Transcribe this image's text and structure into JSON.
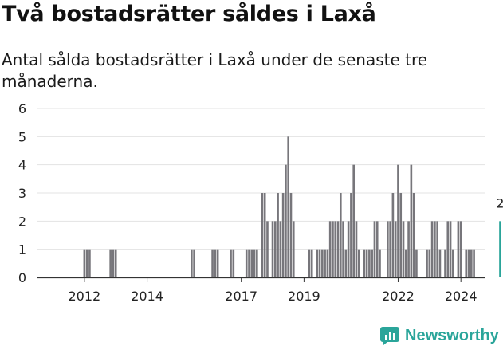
{
  "title": "Två bostadsrätter såldes i Laxå",
  "subtitle": "Antal sålda bostadsrätter i Laxå under de senaste tre månaderna.",
  "brand": {
    "name": "Newsworthy",
    "icon": "newsworthy-logo-icon",
    "color": "#2aa59a"
  },
  "colors": {
    "bar": "#77767b",
    "highlight": "#2aa59a",
    "grid": "#e3e3e3",
    "axis": "#333333"
  },
  "chart_data": {
    "type": "bar",
    "x_unit": "month",
    "x_start": "2011-01",
    "x_end": "2025-07",
    "ylim": [
      0,
      6
    ],
    "yticks": [
      0,
      1,
      2,
      3,
      4,
      5,
      6
    ],
    "grid": true,
    "xtick_labels": [
      {
        "label": "2012",
        "date": "2012-01"
      },
      {
        "label": "2014",
        "date": "2014-01"
      },
      {
        "label": "2017",
        "date": "2017-01"
      },
      {
        "label": "2019",
        "date": "2019-01"
      },
      {
        "label": "2022",
        "date": "2022-01"
      },
      {
        "label": "2024",
        "date": "2024-01"
      }
    ],
    "highlight_label": "2",
    "series": [
      {
        "values": [
          {
            "date": "2012-01",
            "value": 1
          },
          {
            "date": "2012-02",
            "value": 1
          },
          {
            "date": "2012-03",
            "value": 1
          },
          {
            "date": "2012-11",
            "value": 1
          },
          {
            "date": "2012-12",
            "value": 1
          },
          {
            "date": "2013-01",
            "value": 1
          },
          {
            "date": "2015-06",
            "value": 1
          },
          {
            "date": "2015-07",
            "value": 1
          },
          {
            "date": "2016-02",
            "value": 1
          },
          {
            "date": "2016-03",
            "value": 1
          },
          {
            "date": "2016-04",
            "value": 1
          },
          {
            "date": "2016-09",
            "value": 1
          },
          {
            "date": "2016-10",
            "value": 1
          },
          {
            "date": "2017-03",
            "value": 1
          },
          {
            "date": "2017-04",
            "value": 1
          },
          {
            "date": "2017-05",
            "value": 1
          },
          {
            "date": "2017-06",
            "value": 1
          },
          {
            "date": "2017-07",
            "value": 1
          },
          {
            "date": "2017-09",
            "value": 3
          },
          {
            "date": "2017-10",
            "value": 3
          },
          {
            "date": "2017-11",
            "value": 2
          },
          {
            "date": "2018-01",
            "value": 2
          },
          {
            "date": "2018-02",
            "value": 2
          },
          {
            "date": "2018-03",
            "value": 3
          },
          {
            "date": "2018-04",
            "value": 2
          },
          {
            "date": "2018-05",
            "value": 3
          },
          {
            "date": "2018-06",
            "value": 4
          },
          {
            "date": "2018-07",
            "value": 5
          },
          {
            "date": "2018-08",
            "value": 3
          },
          {
            "date": "2018-09",
            "value": 2
          },
          {
            "date": "2019-03",
            "value": 1
          },
          {
            "date": "2019-04",
            "value": 1
          },
          {
            "date": "2019-06",
            "value": 1
          },
          {
            "date": "2019-07",
            "value": 1
          },
          {
            "date": "2019-08",
            "value": 1
          },
          {
            "date": "2019-09",
            "value": 1
          },
          {
            "date": "2019-10",
            "value": 1
          },
          {
            "date": "2019-11",
            "value": 2
          },
          {
            "date": "2019-12",
            "value": 2
          },
          {
            "date": "2020-01",
            "value": 2
          },
          {
            "date": "2020-02",
            "value": 2
          },
          {
            "date": "2020-03",
            "value": 3
          },
          {
            "date": "2020-04",
            "value": 2
          },
          {
            "date": "2020-05",
            "value": 1
          },
          {
            "date": "2020-06",
            "value": 2
          },
          {
            "date": "2020-07",
            "value": 3
          },
          {
            "date": "2020-08",
            "value": 4
          },
          {
            "date": "2020-09",
            "value": 2
          },
          {
            "date": "2020-10",
            "value": 1
          },
          {
            "date": "2020-12",
            "value": 1
          },
          {
            "date": "2021-01",
            "value": 1
          },
          {
            "date": "2021-02",
            "value": 1
          },
          {
            "date": "2021-03",
            "value": 1
          },
          {
            "date": "2021-04",
            "value": 2
          },
          {
            "date": "2021-05",
            "value": 2
          },
          {
            "date": "2021-06",
            "value": 1
          },
          {
            "date": "2021-09",
            "value": 2
          },
          {
            "date": "2021-10",
            "value": 2
          },
          {
            "date": "2021-11",
            "value": 3
          },
          {
            "date": "2021-12",
            "value": 2
          },
          {
            "date": "2022-01",
            "value": 4
          },
          {
            "date": "2022-02",
            "value": 3
          },
          {
            "date": "2022-03",
            "value": 2
          },
          {
            "date": "2022-04",
            "value": 1
          },
          {
            "date": "2022-05",
            "value": 2
          },
          {
            "date": "2022-06",
            "value": 4
          },
          {
            "date": "2022-07",
            "value": 3
          },
          {
            "date": "2022-08",
            "value": 1
          },
          {
            "date": "2022-12",
            "value": 1
          },
          {
            "date": "2023-01",
            "value": 1
          },
          {
            "date": "2023-02",
            "value": 2
          },
          {
            "date": "2023-03",
            "value": 2
          },
          {
            "date": "2023-04",
            "value": 2
          },
          {
            "date": "2023-05",
            "value": 1
          },
          {
            "date": "2023-07",
            "value": 1
          },
          {
            "date": "2023-08",
            "value": 2
          },
          {
            "date": "2023-09",
            "value": 2
          },
          {
            "date": "2023-10",
            "value": 1
          },
          {
            "date": "2023-12",
            "value": 2
          },
          {
            "date": "2024-01",
            "value": 2
          },
          {
            "date": "2024-03",
            "value": 1
          },
          {
            "date": "2024-04",
            "value": 1
          },
          {
            "date": "2024-05",
            "value": 1
          },
          {
            "date": "2024-06",
            "value": 1
          },
          {
            "date": "2025-04",
            "value": 2,
            "highlight": true
          }
        ]
      }
    ]
  }
}
